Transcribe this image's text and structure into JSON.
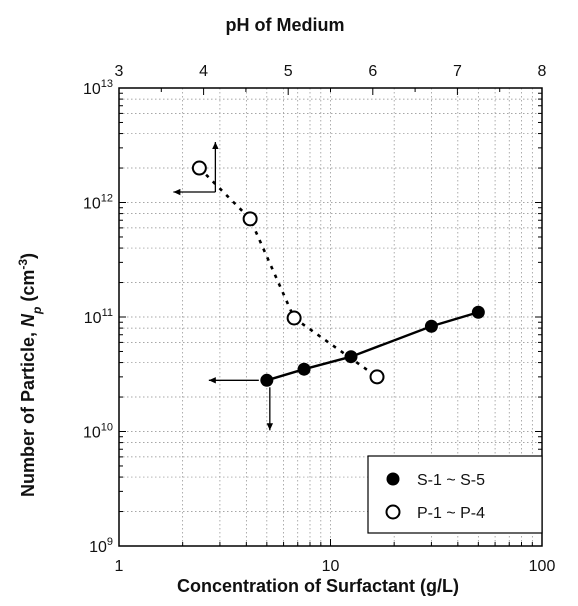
{
  "chart_data": {
    "type": "scatter",
    "x_bottom": {
      "label": "Concentration of Surfactant (g/L)",
      "scale": "log",
      "range": [
        1,
        100
      ],
      "ticks": [
        {
          "value": 1,
          "label": "1"
        },
        {
          "value": 10,
          "label": "10"
        },
        {
          "value": 100,
          "label": "100"
        }
      ]
    },
    "x_top": {
      "label": "pH of Medium",
      "scale": "linear",
      "range": [
        3,
        8
      ],
      "ticks": [
        {
          "value": 3,
          "label": "3"
        },
        {
          "value": 4,
          "label": "4"
        },
        {
          "value": 5,
          "label": "5"
        },
        {
          "value": 6,
          "label": "6"
        },
        {
          "value": 7,
          "label": "7"
        },
        {
          "value": 8,
          "label": "8"
        }
      ]
    },
    "y": {
      "label_main": "Number of Particle, ",
      "label_var": "N",
      "label_sub": "p",
      "label_unit": " (cm",
      "label_sup": "-3",
      "label_close": ")",
      "scale": "log",
      "range": [
        1000000000.0,
        10000000000000.0
      ],
      "ticks": [
        {
          "value": 1000000000.0,
          "base": "10",
          "exp": "9"
        },
        {
          "value": 10000000000.0,
          "base": "10",
          "exp": "10"
        },
        {
          "value": 100000000000.0,
          "base": "10",
          "exp": "11"
        },
        {
          "value": 1000000000000.0,
          "base": "10",
          "exp": "12"
        },
        {
          "value": 10000000000000.0,
          "base": "10",
          "exp": "13"
        }
      ]
    },
    "grid": true,
    "legend_position": "bottom-right",
    "series": [
      {
        "name": "S-1 ~ S-5",
        "marker": "filled-circle",
        "x_axis": "bottom",
        "line": "solid",
        "x": [
          5,
          7.5,
          12.5,
          30,
          50
        ],
        "y": [
          28000000000.0,
          35000000000.0,
          45000000000.0,
          83000000000.0,
          110000000000.0
        ]
      },
      {
        "name": "P-1 ~ P-4",
        "marker": "open-circle",
        "x_axis": "top",
        "line": "dotted",
        "x": [
          3.95,
          4.55,
          5.07,
          6.05
        ],
        "y": [
          2000000000000.0,
          720000000000.0,
          98000000000.0,
          30000000000.0
        ]
      }
    ]
  }
}
